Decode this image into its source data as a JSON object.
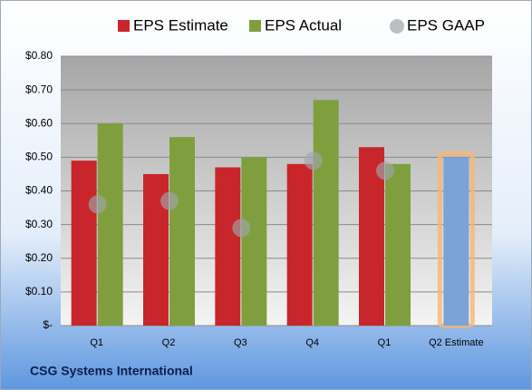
{
  "chart_data": {
    "type": "bar",
    "title": "CSG Systems International",
    "categories": [
      "Q1",
      "Q2",
      "Q3",
      "Q4",
      "Q1",
      "Q2 Estimate"
    ],
    "series": [
      {
        "name": "EPS Estimate",
        "color": "#c8262b",
        "bar_colors": [
          "#c8262b",
          "#c8262b",
          "#c8262b",
          "#c8262b",
          "#c8262b",
          "#7ba3d8"
        ],
        "values": [
          0.49,
          0.45,
          0.47,
          0.48,
          0.53,
          0.5
        ]
      },
      {
        "name": "EPS Actual",
        "color": "#7f9f3f",
        "values": [
          0.6,
          0.56,
          0.5,
          0.67,
          0.48,
          null
        ]
      },
      {
        "name": "EPS GAAP",
        "color": "#a0a4ab",
        "marker": "circle",
        "values": [
          0.36,
          0.37,
          0.29,
          0.49,
          0.46,
          null
        ]
      }
    ],
    "ylim": [
      0,
      0.8
    ],
    "yticks": [
      {
        "value": 0,
        "label": "$-"
      },
      {
        "value": 0.1,
        "label": "$0.10"
      },
      {
        "value": 0.2,
        "label": "$0.20"
      },
      {
        "value": 0.3,
        "label": "$0.30"
      },
      {
        "value": 0.4,
        "label": "$0.40"
      },
      {
        "value": 0.5,
        "label": "$0.50"
      },
      {
        "value": 0.6,
        "label": "$0.60"
      },
      {
        "value": 0.7,
        "label": "$0.70"
      },
      {
        "value": 0.8,
        "label": "$0.80"
      }
    ],
    "grid": true,
    "legend": "top"
  }
}
